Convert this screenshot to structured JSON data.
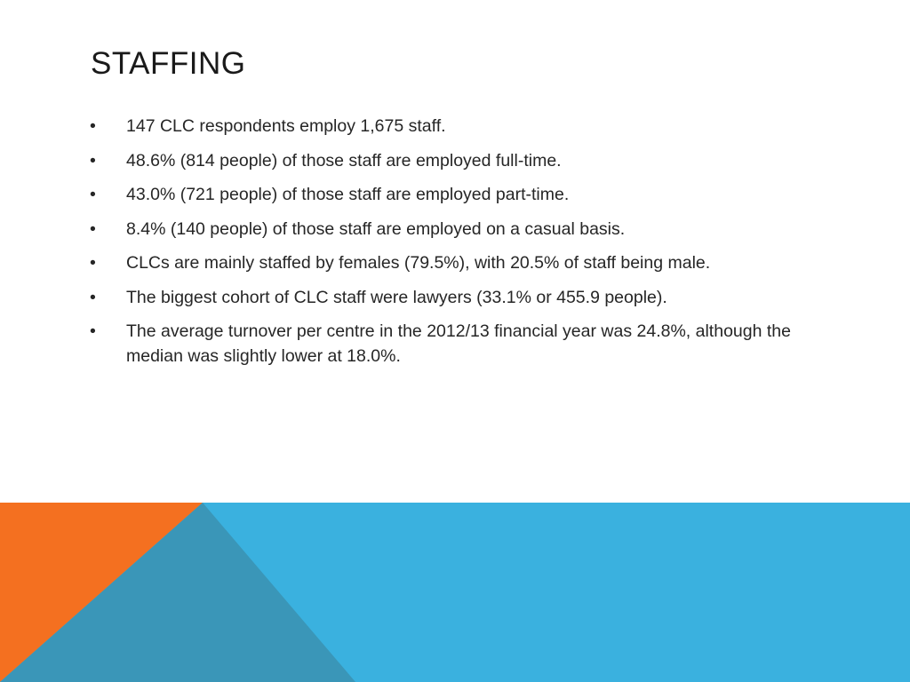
{
  "slide": {
    "title": "STAFFING",
    "bullet_symbol": "•",
    "bullets": [
      "147 CLC respondents employ 1,675 staff.",
      "48.6% (814 people) of those staff are employed full-time.",
      "43.0% (721 people) of those staff are employed part-time.",
      "8.4% (140 people) of those staff are employed on a casual basis.",
      "CLCs are mainly staffed by females (79.5%), with 20.5% of staff being male.",
      "The biggest cohort of CLC staff were lawyers (33.1% or 455.9 people).",
      "The average turnover per centre in the 2012/13 financial year was 24.8%, although the median was slightly lower at 18.0%."
    ]
  },
  "colors": {
    "blue": "#3ab1df",
    "orange": "#f47020",
    "overlap": "#3a96b8",
    "title": "#1a1a1a",
    "text": "#262626"
  }
}
